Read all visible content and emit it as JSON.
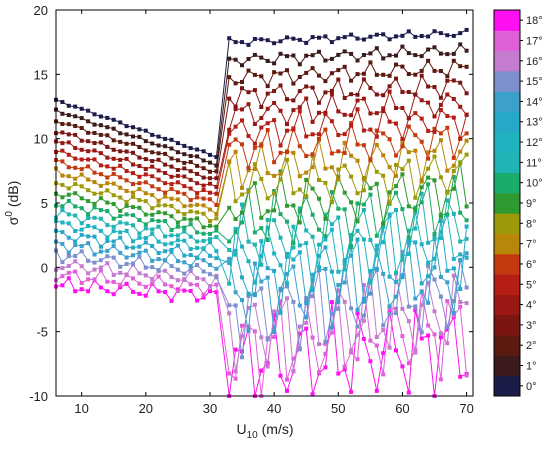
{
  "chart_data": {
    "type": "line",
    "xlabel_main": "U",
    "xlabel_sub": "10",
    "xlabel_unit": " (m/s)",
    "ylabel_main": "σ",
    "ylabel_sup": "0",
    "ylabel_unit": " (dB)",
    "xlim": [
      6,
      71
    ],
    "ylim": [
      -10,
      20
    ],
    "xticks": [
      "10",
      "20",
      "30",
      "40",
      "50",
      "60",
      "70"
    ],
    "yticks": [
      "-10",
      "-5",
      "0",
      "5",
      "10",
      "15",
      "20"
    ],
    "grid": false,
    "legend": "colorbar-right",
    "colorbar": {
      "labels": [
        "0°",
        "1°",
        "2°",
        "3°",
        "4°",
        "5°",
        "6°",
        "7°",
        "8°",
        "9°",
        "10°",
        "11°",
        "12°",
        "13°",
        "14°",
        "15°",
        "16°",
        "17°",
        "18°"
      ],
      "colors": [
        "#1c1c4a",
        "#3a1a1a",
        "#5a1a10",
        "#7a1512",
        "#9a1814",
        "#b51e14",
        "#c43a10",
        "#b8870a",
        "#9c9a0a",
        "#2f9a2f",
        "#1bab6a",
        "#20b4b4",
        "#1fb3c0",
        "#26a8c8",
        "#3ba0cc",
        "#7d8fcf",
        "#c47ccf",
        "#e060d8",
        "#ff10f0"
      ]
    }
  }
}
